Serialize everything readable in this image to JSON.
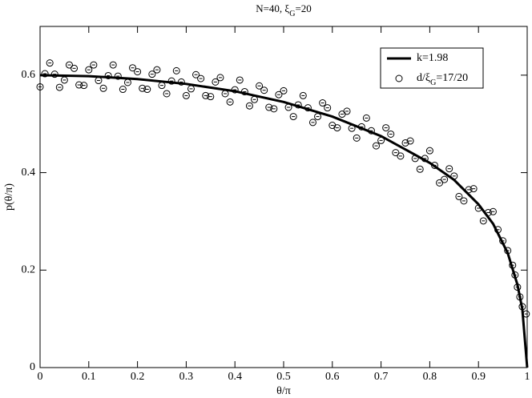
{
  "chart_data": {
    "type": "line+scatter",
    "title": "N=40, ξG=20",
    "x_label": "θ/π",
    "y_label": "p(θ/π)",
    "xlim": [
      0,
      1
    ],
    "ylim": [
      0,
      0.7
    ],
    "xticks": [
      0,
      0.1,
      0.2,
      0.3,
      0.4,
      0.5,
      0.6,
      0.7,
      0.8,
      0.9,
      1
    ],
    "yticks": [
      0,
      0.2,
      0.4,
      0.6
    ],
    "legend": "top-right",
    "series": [
      {
        "name": "k=1.98",
        "type": "line",
        "color": "#000000",
        "x": [
          0,
          0.1,
          0.2,
          0.3,
          0.4,
          0.5,
          0.6,
          0.7,
          0.8,
          0.85,
          0.9,
          0.93,
          0.96,
          0.98,
          0.99,
          1.0
        ],
        "values": [
          0.6,
          0.598,
          0.592,
          0.582,
          0.567,
          0.545,
          0.515,
          0.475,
          0.42,
          0.385,
          0.335,
          0.295,
          0.235,
          0.17,
          0.12,
          0
        ]
      },
      {
        "name": "d/ξG=17/20",
        "type": "scatter",
        "color": "#000000",
        "x": [
          0,
          0.01,
          0.02,
          0.03,
          0.04,
          0.05,
          0.06,
          0.07,
          0.08,
          0.09,
          0.1,
          0.11,
          0.12,
          0.13,
          0.14,
          0.15,
          0.16,
          0.17,
          0.18,
          0.19,
          0.2,
          0.21,
          0.22,
          0.23,
          0.24,
          0.25,
          0.26,
          0.27,
          0.28,
          0.29,
          0.3,
          0.31,
          0.32,
          0.33,
          0.34,
          0.35,
          0.36,
          0.37,
          0.38,
          0.39,
          0.4,
          0.41,
          0.42,
          0.43,
          0.44,
          0.45,
          0.46,
          0.47,
          0.48,
          0.49,
          0.5,
          0.51,
          0.52,
          0.53,
          0.54,
          0.55,
          0.56,
          0.57,
          0.58,
          0.59,
          0.6,
          0.61,
          0.62,
          0.63,
          0.64,
          0.65,
          0.66,
          0.67,
          0.68,
          0.69,
          0.7,
          0.71,
          0.72,
          0.73,
          0.74,
          0.75,
          0.76,
          0.77,
          0.78,
          0.79,
          0.8,
          0.81,
          0.82,
          0.83,
          0.84,
          0.85,
          0.86,
          0.87,
          0.88,
          0.89,
          0.9,
          0.91,
          0.92,
          0.93,
          0.94,
          0.95,
          0.96,
          0.97,
          0.975,
          0.98,
          0.985,
          0.99,
          0.998
        ],
        "values": [
          0.576,
          0.603,
          0.625,
          0.602,
          0.575,
          0.59,
          0.621,
          0.614,
          0.58,
          0.579,
          0.611,
          0.621,
          0.589,
          0.573,
          0.599,
          0.621,
          0.598,
          0.571,
          0.585,
          0.615,
          0.607,
          0.573,
          0.571,
          0.602,
          0.611,
          0.579,
          0.562,
          0.588,
          0.609,
          0.586,
          0.558,
          0.572,
          0.601,
          0.593,
          0.558,
          0.556,
          0.586,
          0.595,
          0.562,
          0.545,
          0.57,
          0.59,
          0.566,
          0.537,
          0.55,
          0.578,
          0.569,
          0.534,
          0.531,
          0.56,
          0.568,
          0.534,
          0.515,
          0.539,
          0.558,
          0.533,
          0.503,
          0.515,
          0.543,
          0.533,
          0.497,
          0.492,
          0.52,
          0.526,
          0.491,
          0.471,
          0.494,
          0.512,
          0.486,
          0.455,
          0.466,
          0.492,
          0.479,
          0.441,
          0.434,
          0.461,
          0.465,
          0.429,
          0.407,
          0.429,
          0.445,
          0.415,
          0.379,
          0.386,
          0.408,
          0.393,
          0.351,
          0.342,
          0.365,
          0.367,
          0.327,
          0.301,
          0.318,
          0.32,
          0.283,
          0.26,
          0.24,
          0.21,
          0.19,
          0.165,
          0.145,
          0.125,
          0.11
        ]
      }
    ]
  }
}
